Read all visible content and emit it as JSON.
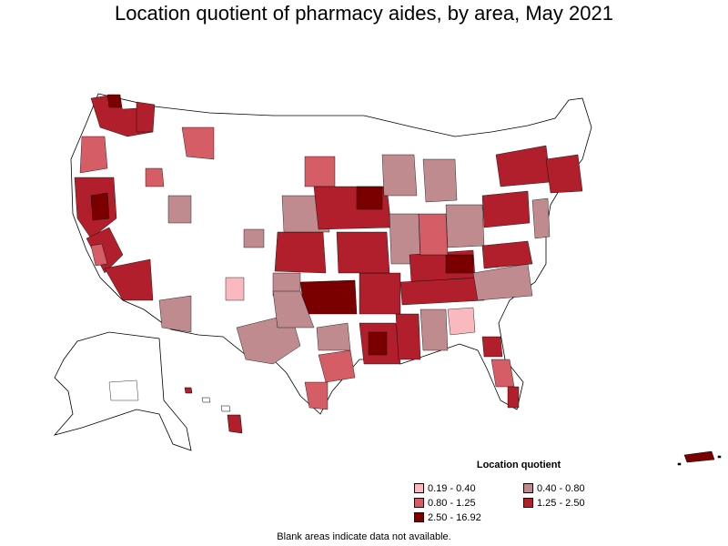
{
  "title": "Location quotient of pharmacy aides, by area, May 2021",
  "legend": {
    "title": "Location quotient",
    "items": [
      {
        "label": "0.19 - 0.40",
        "color": "#f9b9bf"
      },
      {
        "label": "0.40 - 0.80",
        "color": "#bf8b8e"
      },
      {
        "label": "0.80 - 1.25",
        "color": "#d55d66"
      },
      {
        "label": "1.25 - 2.50",
        "color": "#b01f2b"
      },
      {
        "label": "2.50 - 16.92",
        "color": "#7a0000"
      }
    ]
  },
  "note": "Blank areas indicate data not available.",
  "colors": {
    "outline": "#000000",
    "blank": "#ffffff",
    "c019": "#f9b9bf",
    "c040": "#bf8b8e",
    "c080": "#d55d66",
    "c125": "#b01f2b",
    "c250": "#7a0000"
  }
}
